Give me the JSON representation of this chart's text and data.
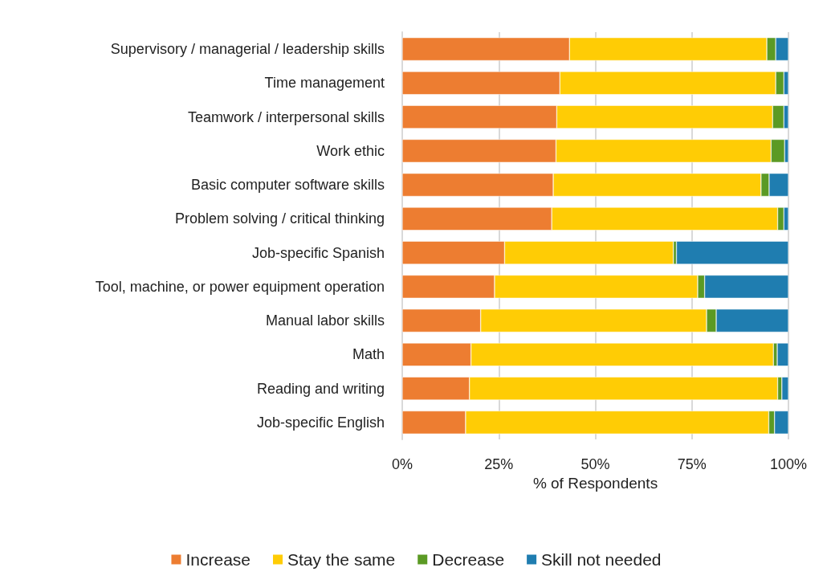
{
  "chart_data": {
    "type": "bar",
    "orientation": "horizontal",
    "stacked": true,
    "xlabel": "% of Respondents",
    "categories": [
      "Supervisory / managerial / leadership skills",
      "Time management",
      "Teamwork / interpersonal skills",
      "Work ethic",
      "Basic computer software skills",
      "Problem solving / critical thinking",
      "Job-specific Spanish",
      "Tool, machine, or power equipment operation",
      "Manual labor skills",
      "Math",
      "Reading and writing",
      "Job-specific English"
    ],
    "series": [
      {
        "name": "Increase",
        "color": "#ed7d31",
        "values": [
          43.3,
          40.8,
          40.0,
          39.8,
          39.1,
          38.7,
          26.5,
          23.9,
          20.3,
          17.8,
          17.4,
          16.4
        ]
      },
      {
        "name": "Stay the same",
        "color": "#ffcc05",
        "values": [
          51.1,
          55.9,
          55.9,
          55.7,
          53.8,
          58.5,
          43.7,
          52.6,
          58.5,
          78.3,
          79.8,
          78.5
        ]
      },
      {
        "name": "Decrease",
        "color": "#5b9a24",
        "values": [
          2.3,
          2.1,
          2.9,
          3.5,
          2.1,
          1.6,
          0.8,
          1.8,
          2.5,
          1.0,
          1.1,
          1.5
        ]
      },
      {
        "name": "Skill not needed",
        "color": "#1f7db0",
        "values": [
          3.3,
          1.2,
          1.2,
          1.0,
          5.0,
          1.2,
          29.0,
          21.7,
          18.7,
          2.9,
          1.7,
          3.6
        ]
      }
    ],
    "xlim": [
      0,
      100
    ],
    "xticks": [
      {
        "value": 0,
        "label": "0%"
      },
      {
        "value": 25,
        "label": "25%"
      },
      {
        "value": 50,
        "label": "50%"
      },
      {
        "value": 75,
        "label": "75%"
      },
      {
        "value": 100,
        "label": "100%"
      }
    ],
    "grid": "x",
    "legend": "bottom"
  }
}
